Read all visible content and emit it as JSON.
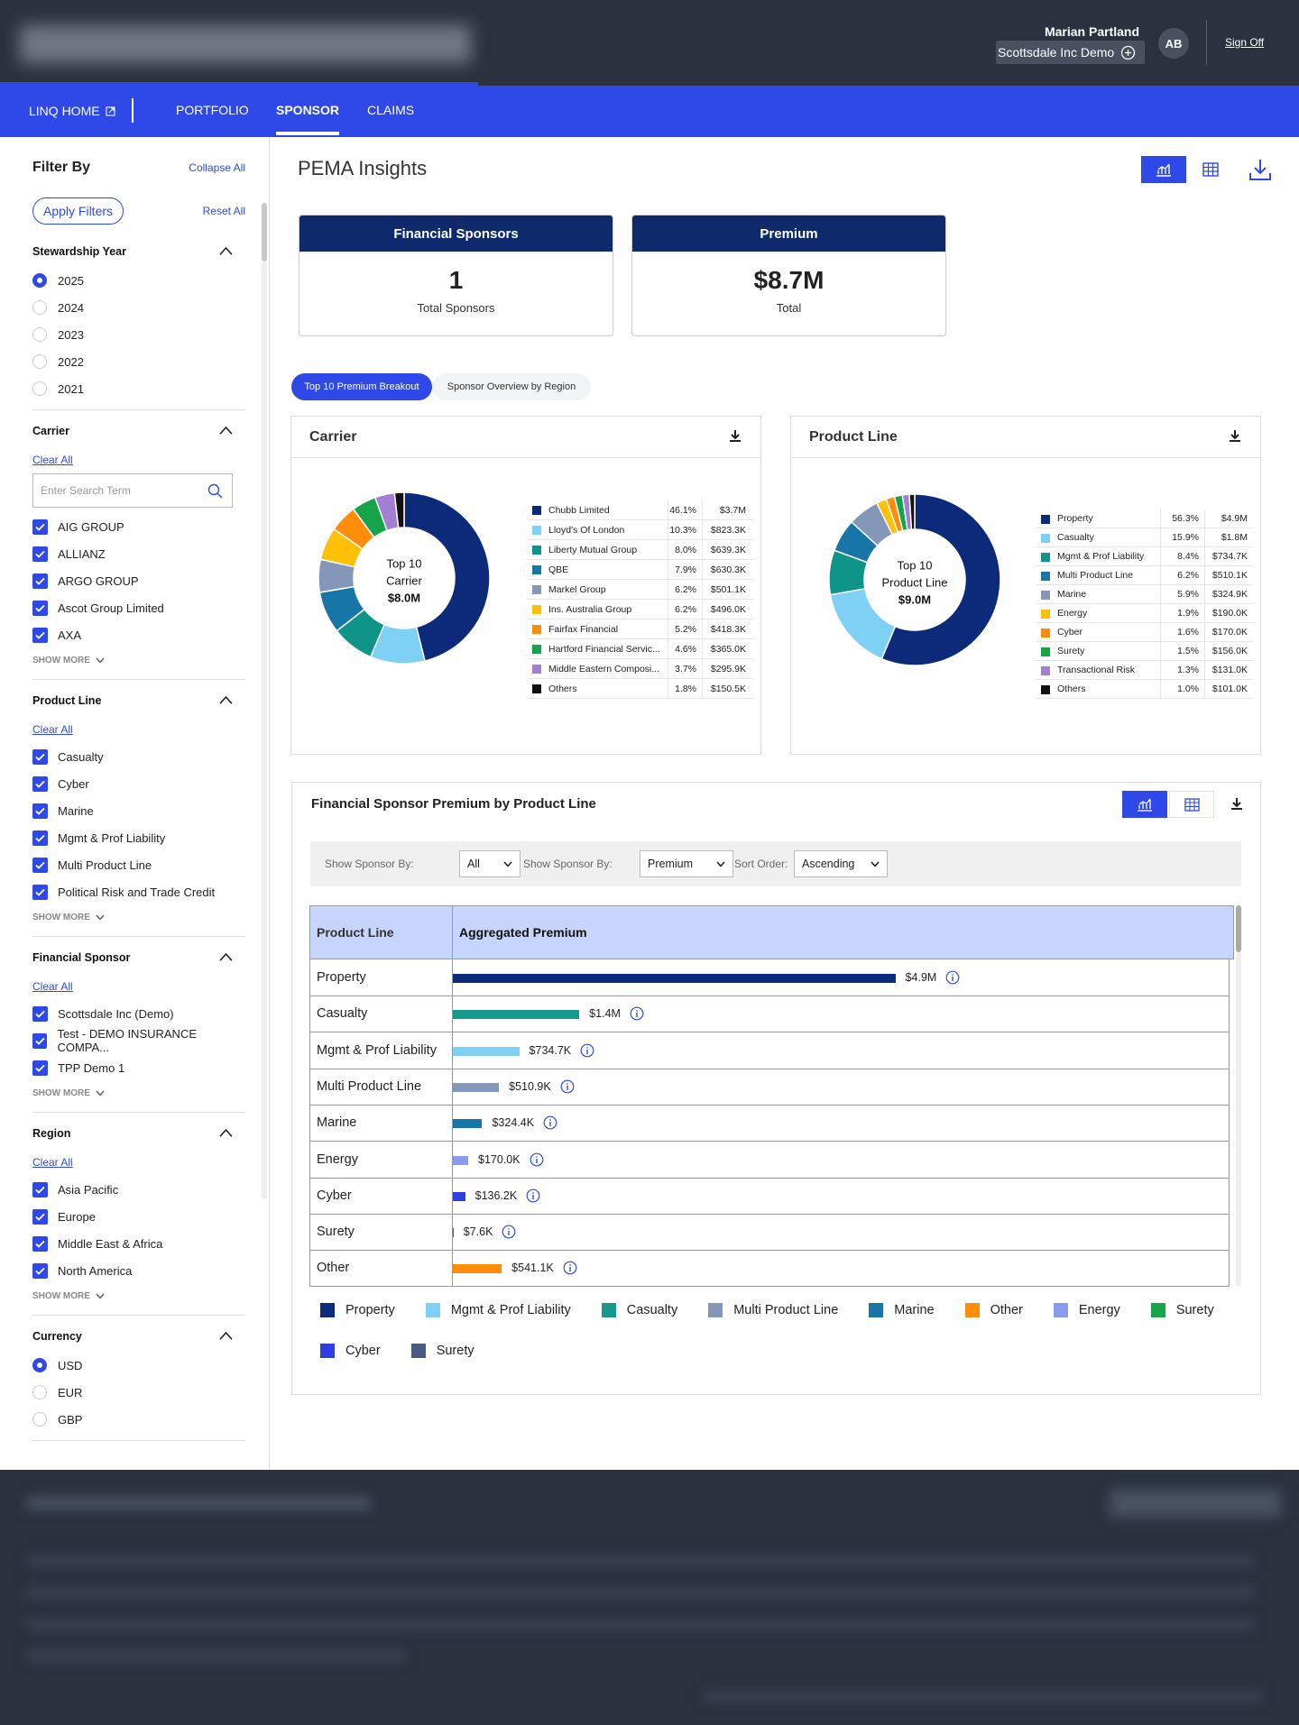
{
  "header": {
    "user_name": "Marian Partland",
    "account": "Scottsdale Inc Demo",
    "initials": "AB",
    "sign_off": "Sign Off"
  },
  "nav": {
    "home": "LINQ HOME",
    "items": [
      "PORTFOLIO",
      "SPONSOR",
      "CLAIMS"
    ],
    "active": 1
  },
  "sidebar": {
    "title": "Filter By",
    "collapse": "Collapse All",
    "apply": "Apply Filters",
    "reset": "Reset All",
    "sections": [
      {
        "title": "Stewardship Year",
        "kind": "radio",
        "options": [
          "2025",
          "2024",
          "2023",
          "2022",
          "2021"
        ],
        "selected": 0
      },
      {
        "title": "Carrier",
        "kind": "checkbox",
        "clear": "Clear All",
        "search": "Enter Search Term",
        "options": [
          "AIG GROUP",
          "ALLIANZ",
          "ARGO GROUP",
          "Ascot Group Limited",
          "AXA"
        ],
        "more": "SHOW MORE"
      },
      {
        "title": "Product Line",
        "kind": "checkbox",
        "clear": "Clear All",
        "options": [
          "Casualty",
          "Cyber",
          "Marine",
          "Mgmt & Prof Liability",
          "Multi Product Line",
          "Political Risk and Trade Credit"
        ],
        "more": "SHOW MORE"
      },
      {
        "title": "Financial Sponsor",
        "kind": "checkbox",
        "clear": "Clear All",
        "options": [
          "Scottsdale Inc (Demo)",
          "Test - DEMO INSURANCE COMPA...",
          "TPP Demo 1"
        ],
        "more": "SHOW MORE"
      },
      {
        "title": "Region",
        "kind": "checkbox",
        "clear": "Clear All",
        "options": [
          "Asia Pacific",
          "Europe",
          "Middle East & Africa",
          "North America"
        ],
        "more": "SHOW MORE"
      },
      {
        "title": "Currency",
        "kind": "radio",
        "options": [
          "USD",
          "EUR",
          "GBP"
        ],
        "selected": 0
      }
    ]
  },
  "insights": {
    "title": "PEMA Insights",
    "cards": [
      {
        "title": "Financial Sponsors",
        "value": "1",
        "caption": "Total Sponsors"
      },
      {
        "title": "Premium",
        "value": "$8.7M",
        "caption": "Total"
      }
    ],
    "tabs": [
      "Top 10 Premium Breakout",
      "Sponsor Overview by Region"
    ],
    "active_tab": 0,
    "donuts": [
      {
        "type": "pie",
        "title": "Carrier",
        "center": [
          "Top 10",
          "Carrier",
          "$8.0M"
        ],
        "names": [
          "Chubb Limited",
          "Lloyd's Of London",
          "Liberty Mutual Group",
          "QBE",
          "Markel Group",
          "Ins. Australia Group",
          "Fairfax Financial",
          "Hartford Financial Servic...",
          "Middle Eastern Composi...",
          "Others"
        ],
        "colors": [
          "#0d2a7a",
          "#7fd0f5",
          "#0e9488",
          "#1775a8",
          "#8497b8",
          "#ffc107",
          "#ff8c0a",
          "#16a34a",
          "#a27fd3",
          "#111111"
        ],
        "values": [
          46.1,
          10.3,
          8.0,
          7.9,
          6.2,
          6.2,
          5.2,
          4.6,
          3.7,
          1.8
        ],
        "value_labels": [
          "46.1%",
          "10.3%",
          "8.0%",
          "7.9%",
          "6.2%",
          "6.2%",
          "5.2%",
          "4.6%",
          "3.7%",
          "1.8%"
        ],
        "amounts": [
          "$3.7M",
          "$823.3K",
          "$639.3K",
          "$630.3K",
          "$501.1K",
          "$496.0K",
          "$418.3K",
          "$365.0K",
          "$295.9K",
          "$150.5K"
        ]
      },
      {
        "type": "pie",
        "title": "Product Line",
        "center": [
          "Top 10",
          "Product Line",
          "$9.0M"
        ],
        "names": [
          "Property",
          "Casualty",
          "Mgmt & Prof Liability",
          "Multi Product Line",
          "Marine",
          "Energy",
          "Cyber",
          "Surety",
          "Transactional Risk",
          "Others"
        ],
        "colors": [
          "#0d2a7a",
          "#7fd0f5",
          "#0e9488",
          "#1775a8",
          "#8497b8",
          "#ffc107",
          "#ff8c0a",
          "#16a34a",
          "#a27fd3",
          "#111111"
        ],
        "values": [
          56.3,
          15.9,
          8.4,
          6.2,
          5.9,
          1.9,
          1.6,
          1.5,
          1.3,
          1.0
        ],
        "value_labels": [
          "56.3%",
          "15.9%",
          "8.4%",
          "6.2%",
          "5.9%",
          "1.9%",
          "1.6%",
          "1.5%",
          "1.3%",
          "1.0%"
        ],
        "amounts": [
          "$4.9M",
          "$1.8M",
          "$734.7K",
          "$510.1K",
          "$324.9K",
          "$190.0K",
          "$170.0K",
          "$156.0K",
          "$131.0K",
          "$101.0K"
        ]
      }
    ],
    "premium_panel": {
      "title": "Financial Sponsor Premium by Product Line",
      "filters": [
        {
          "label": "Show Sponsor By:",
          "value": "All"
        },
        {
          "label": "Show Sponsor By:",
          "value": "Premium"
        },
        {
          "label": "Sort Order:",
          "value": "Ascending"
        }
      ],
      "columns": [
        "Product Line",
        "Aggregated Premium"
      ],
      "chart": {
        "type": "bar",
        "categories": [
          "Property",
          "Casualty",
          "Mgmt & Prof Liability",
          "Multi Product Line",
          "Marine",
          "Energy",
          "Cyber",
          "Surety",
          "Other"
        ],
        "values": [
          4900000,
          1400000,
          734700,
          510900,
          324400,
          170000,
          136200,
          7600,
          541100
        ],
        "value_labels": [
          "$4.9M",
          "$1.4M",
          "$734.7K",
          "$510.9K",
          "$324.4K",
          "$170.0K",
          "$136.2K",
          "$7.6K",
          "$541.1K"
        ],
        "colors": [
          "#0d2a7a",
          "#14998c",
          "#7fd0f5",
          "#8497b8",
          "#1775a8",
          "#8b9cf0",
          "#2d3fe0",
          "#4a5a80",
          "#ff8c0a"
        ],
        "xlim": [
          0,
          8600000
        ]
      },
      "legend": [
        {
          "name": "Property",
          "color": "#0d2a7a"
        },
        {
          "name": "Mgmt & Prof Liability",
          "color": "#7fd0f5"
        },
        {
          "name": "Casualty",
          "color": "#14998c"
        },
        {
          "name": "Multi Product Line",
          "color": "#8497b8"
        },
        {
          "name": "Marine",
          "color": "#1775a8"
        },
        {
          "name": "Other",
          "color": "#ff8c0a"
        },
        {
          "name": "Energy",
          "color": "#8b9cf0"
        },
        {
          "name": "Surety",
          "color": "#16a34a"
        },
        {
          "name": "Cyber",
          "color": "#2d3fe0"
        },
        {
          "name": "Surety",
          "color": "#4a5a80"
        }
      ]
    }
  }
}
